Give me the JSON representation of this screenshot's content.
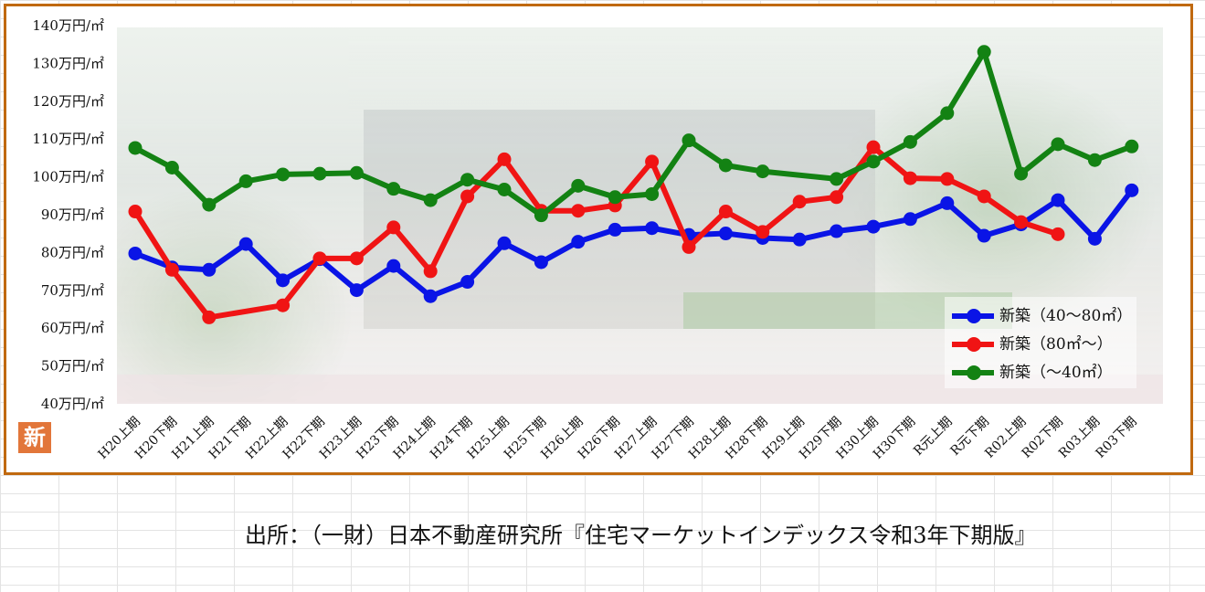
{
  "caption": "出所：（一財）日本不動産研究所『住宅マーケットインデックス令和3年下期版』",
  "badge": "新",
  "chart_data": {
    "type": "line",
    "title": "",
    "xlabel": "",
    "ylabel": "",
    "ylim": [
      40,
      140
    ],
    "y_ticks": [
      "40万円/㎡",
      "50万円/㎡",
      "60万円/㎡",
      "70万円/㎡",
      "80万円/㎡",
      "90万円/㎡",
      "100万円/㎡",
      "110万円/㎡",
      "120万円/㎡",
      "130万円/㎡",
      "140万円/㎡"
    ],
    "categories": [
      "H20上期",
      "H20下期",
      "H21上期",
      "H21下期",
      "H22上期",
      "H22下期",
      "H23上期",
      "H23下期",
      "H24上期",
      "H24下期",
      "H25上期",
      "H25下期",
      "H26上期",
      "H26下期",
      "H27上期",
      "H27下期",
      "H28上期",
      "H28下期",
      "H29上期",
      "H29下期",
      "H30上期",
      "H30下期",
      "R元上期",
      "R元下期",
      "R02上期",
      "R02下期",
      "R03上期",
      "R03下期"
    ],
    "grid": false,
    "legend_position": "bottom-right",
    "series": [
      {
        "name": "新築（40～80㎡）",
        "color": "#0a14e6",
        "values": [
          79.5,
          75.8,
          75.2,
          82,
          72.4,
          78,
          69.8,
          76.2,
          68.2,
          72,
          82.2,
          77.2,
          82.6,
          85.8,
          86.2,
          84.4,
          84.8,
          83.6,
          83.2,
          85.4,
          86.6,
          88.6,
          92.8,
          84.2,
          87.2,
          93.6,
          83.4,
          96.2
        ]
      },
      {
        "name": "新築（80㎡～）",
        "color": "#f01414",
        "values": [
          90.6,
          75.2,
          62.6,
          null,
          65.8,
          78.2,
          78.2,
          86.4,
          74.8,
          94.6,
          104.4,
          90.8,
          90.8,
          92.2,
          103.8,
          81.2,
          90.6,
          85.2,
          93.2,
          94.4,
          107.6,
          99.4,
          99.2,
          94.6,
          87.8,
          84.6,
          null,
          null
        ]
      },
      {
        "name": "新築（～40㎡）",
        "color": "#138213",
        "values": [
          107.4,
          102.2,
          92.4,
          98.6,
          100.4,
          100.6,
          100.8,
          96.6,
          93.6,
          99,
          96.4,
          89.6,
          97.4,
          94.4,
          95.2,
          109.4,
          102.8,
          101.2,
          null,
          99.2,
          103.8,
          109,
          116.6,
          132.8,
          100.6,
          108.4,
          104.2,
          107.8
        ]
      }
    ]
  }
}
